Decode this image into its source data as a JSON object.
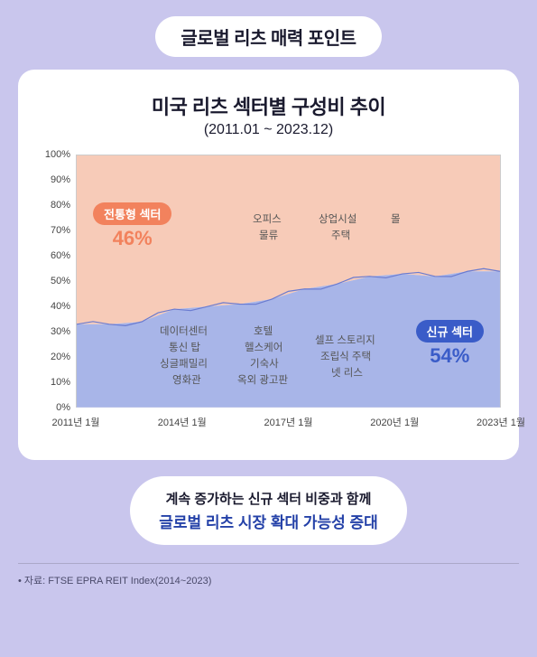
{
  "header": {
    "title": "글로벌 리츠 매력 포인트"
  },
  "chart": {
    "type": "area",
    "title": "미국 리츠 섹터별 구성비 추이",
    "subtitle": "(2011.01 ~ 2023.12)",
    "xlim": [
      2011,
      2023
    ],
    "x_ticks": [
      "2011년 1월",
      "2014년 1월",
      "2017년 1월",
      "2020년 1월",
      "2023년 1월"
    ],
    "x_tick_positions": [
      0,
      25,
      50,
      75,
      100
    ],
    "ylim": [
      0,
      100
    ],
    "y_ticks": [
      "0%",
      "10%",
      "20%",
      "30%",
      "40%",
      "50%",
      "60%",
      "70%",
      "80%",
      "90%",
      "100%"
    ],
    "plot_bg": "#f5f4fb",
    "grid_color": "#d0d0d8",
    "traditional": {
      "label": "전통형 섹터",
      "pct": "46%",
      "badge_color": "#f2825d",
      "pct_color": "#f2825d",
      "area_color": "#f7cbb8",
      "items": [
        "오피스",
        "물류",
        "상업시설",
        "주택",
        "몰"
      ]
    },
    "new": {
      "label": "신규 섹터",
      "pct": "54%",
      "badge_color": "#3a5cc8",
      "pct_color": "#3a5cc8",
      "area_color": "#a8b5e8",
      "items_cols": [
        [
          "데이터센터",
          "통신 탑",
          "싱글패밀리",
          "영화관"
        ],
        [
          "호텔",
          "헬스케어",
          "기숙사",
          "옥외 광고판"
        ],
        [
          "셀프 스토리지",
          "조립식 주택",
          "넷 리스"
        ]
      ]
    },
    "boundary_series_pct": [
      33,
      33,
      34,
      39,
      40,
      41,
      43,
      47,
      49,
      52,
      53,
      52,
      54,
      54
    ],
    "label_fontsize": 11.5,
    "tick_fontsize": 11
  },
  "summary": {
    "line1": "계속 증가하는 신규 섹터 비중과 함께",
    "line2": "글로벌 리츠 시장 확대 가능성 증대",
    "line2_color": "#2441a8"
  },
  "source": {
    "text": "자료: FTSE EPRA REIT Index(2014~2023)"
  }
}
